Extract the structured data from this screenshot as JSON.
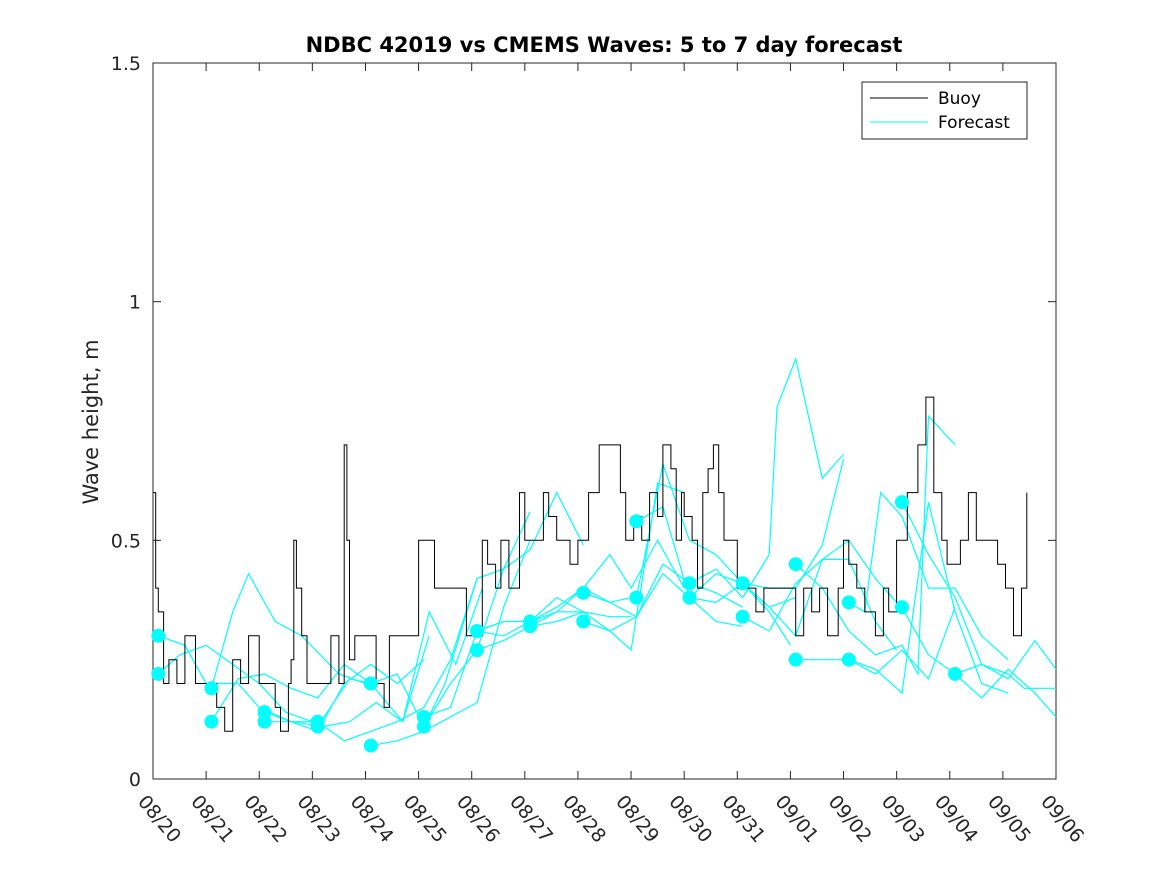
{
  "chart_data": {
    "type": "line",
    "title": "NDBC 42019 vs CMEMS Waves: 5 to 7 day forecast",
    "xlabel": "",
    "ylabel": "Wave height, m",
    "ylim": [
      0,
      1.5
    ],
    "yticks": [
      0,
      0.5,
      1,
      1.5
    ],
    "ytick_labels": [
      "0",
      "0.5",
      "1",
      "1.5"
    ],
    "xlim_days": [
      0,
      17
    ],
    "xtick_labels": [
      "08/20",
      "08/21",
      "08/22",
      "08/23",
      "08/24",
      "08/25",
      "08/26",
      "08/27",
      "08/28",
      "08/29",
      "08/30",
      "08/31",
      "09/01",
      "09/02",
      "09/03",
      "09/04",
      "09/05",
      "09/06"
    ],
    "legend": {
      "position": "top-right",
      "entries": [
        {
          "label": "Buoy",
          "color": "#000000"
        },
        {
          "label": "Forecast",
          "color": "#00ffff"
        }
      ]
    },
    "colors": {
      "buoy": "#000000",
      "forecast": "#00ffff",
      "marker": "#00ffff"
    },
    "buoy": {
      "name": "Buoy",
      "x": [
        0,
        0.05,
        0.1,
        0.2,
        0.3,
        0.45,
        0.6,
        0.8,
        1.0,
        1.1,
        1.2,
        1.35,
        1.5,
        1.65,
        1.8,
        2.0,
        2.15,
        2.3,
        2.4,
        2.55,
        2.6,
        2.65,
        2.7,
        2.8,
        2.9,
        3.0,
        3.1,
        3.2,
        3.35,
        3.5,
        3.6,
        3.65,
        3.7,
        3.8,
        4.0,
        4.2,
        4.35,
        4.45,
        4.6,
        4.8,
        5.0,
        5.3,
        5.5,
        5.7,
        5.9,
        6.0,
        6.1,
        6.2,
        6.3,
        6.45,
        6.55,
        6.7,
        6.9,
        7.0,
        7.15,
        7.25,
        7.35,
        7.45,
        7.6,
        7.7,
        7.85,
        8.0,
        8.2,
        8.4,
        8.6,
        8.8,
        8.9,
        9.05,
        9.2,
        9.35,
        9.5,
        9.6,
        9.75,
        9.85,
        9.95,
        10.0,
        10.15,
        10.25,
        10.35,
        10.45,
        10.55,
        10.65,
        10.75,
        10.9,
        11.0,
        11.2,
        11.35,
        11.5,
        11.7,
        11.9,
        12.0,
        12.1,
        12.25,
        12.4,
        12.55,
        12.7,
        12.9,
        13.0,
        13.1,
        13.25,
        13.4,
        13.6,
        13.75,
        13.85,
        14.0,
        14.2,
        14.4,
        14.55,
        14.7,
        14.85,
        14.95,
        15.0,
        15.2,
        15.35,
        15.5,
        15.6,
        15.8,
        15.9,
        16.05,
        16.2,
        16.35,
        16.45
      ],
      "y": [
        0.6,
        0.4,
        0.35,
        0.2,
        0.25,
        0.2,
        0.3,
        0.2,
        0.2,
        0.2,
        0.15,
        0.1,
        0.25,
        0.2,
        0.3,
        0.2,
        0.2,
        0.15,
        0.1,
        0.2,
        0.25,
        0.5,
        0.4,
        0.3,
        0.2,
        0.2,
        0.2,
        0.2,
        0.3,
        0.2,
        0.7,
        0.5,
        0.25,
        0.3,
        0.3,
        0.2,
        0.15,
        0.3,
        0.3,
        0.3,
        0.5,
        0.4,
        0.4,
        0.4,
        0.3,
        0.3,
        0.3,
        0.5,
        0.45,
        0.4,
        0.5,
        0.4,
        0.6,
        0.5,
        0.5,
        0.5,
        0.6,
        0.55,
        0.5,
        0.5,
        0.45,
        0.5,
        0.6,
        0.7,
        0.7,
        0.6,
        0.5,
        0.55,
        0.5,
        0.6,
        0.55,
        0.7,
        0.65,
        0.5,
        0.6,
        0.55,
        0.5,
        0.4,
        0.6,
        0.65,
        0.7,
        0.6,
        0.5,
        0.5,
        0.4,
        0.4,
        0.35,
        0.4,
        0.4,
        0.4,
        0.4,
        0.3,
        0.4,
        0.35,
        0.4,
        0.3,
        0.4,
        0.5,
        0.45,
        0.4,
        0.35,
        0.3,
        0.4,
        0.35,
        0.5,
        0.6,
        0.7,
        0.8,
        0.6,
        0.5,
        0.45,
        0.45,
        0.5,
        0.6,
        0.5,
        0.5,
        0.5,
        0.45,
        0.4,
        0.3,
        0.4,
        0.6
      ]
    },
    "forecasts": [
      {
        "name": "Forecast",
        "x": [
          0.1,
          0.5,
          1.0,
          1.5,
          2.0,
          2.5,
          3.0
        ],
        "y": [
          0.22,
          0.26,
          0.28,
          0.24,
          0.2,
          0.14,
          0.12
        ]
      },
      {
        "name": "Forecast",
        "x": [
          0.1,
          0.6,
          1.0,
          1.6,
          2.0,
          2.6,
          3.0
        ],
        "y": [
          0.3,
          0.28,
          0.2,
          0.2,
          0.15,
          0.12,
          0.12
        ]
      },
      {
        "name": "Forecast",
        "x": [
          1.1,
          1.5,
          1.8,
          2.3,
          2.8,
          3.5,
          4.0
        ],
        "y": [
          0.19,
          0.35,
          0.43,
          0.33,
          0.3,
          0.22,
          0.2
        ]
      },
      {
        "name": "Forecast",
        "x": [
          1.1,
          1.6,
          2.1,
          2.6,
          3.1,
          3.6,
          4.1
        ],
        "y": [
          0.12,
          0.21,
          0.22,
          0.19,
          0.17,
          0.24,
          0.2
        ]
      },
      {
        "name": "Forecast",
        "x": [
          2.1,
          2.6,
          3.1,
          3.6,
          4.1,
          4.6,
          5.1
        ],
        "y": [
          0.14,
          0.12,
          0.1,
          0.2,
          0.24,
          0.2,
          0.25
        ]
      },
      {
        "name": "Forecast",
        "x": [
          2.1,
          2.6,
          3.2,
          3.7,
          4.2,
          4.7,
          5.2
        ],
        "y": [
          0.12,
          0.12,
          0.11,
          0.12,
          0.16,
          0.12,
          0.3
        ]
      },
      {
        "name": "Forecast",
        "x": [
          3.1,
          3.6,
          4.1,
          4.6,
          5.1,
          5.6,
          6.1
        ],
        "y": [
          0.12,
          0.08,
          0.1,
          0.12,
          0.15,
          0.25,
          0.42
        ]
      },
      {
        "name": "Forecast",
        "x": [
          3.1,
          3.7,
          4.1,
          4.7,
          5.2,
          5.7,
          6.2
        ],
        "y": [
          0.11,
          0.21,
          0.2,
          0.12,
          0.35,
          0.24,
          0.4
        ]
      },
      {
        "name": "Forecast",
        "x": [
          4.1,
          4.6,
          5.1,
          5.6,
          6.1,
          6.6,
          7.1
        ],
        "y": [
          0.07,
          0.08,
          0.1,
          0.13,
          0.16,
          0.36,
          0.5
        ]
      },
      {
        "name": "Forecast",
        "x": [
          4.1,
          4.6,
          5.1,
          5.5,
          6.1,
          6.6,
          7.1
        ],
        "y": [
          0.2,
          0.22,
          0.11,
          0.2,
          0.42,
          0.44,
          0.56
        ]
      },
      {
        "name": "Forecast",
        "x": [
          5.1,
          5.6,
          6.1,
          6.6,
          7.1,
          7.6,
          8.1
        ],
        "y": [
          0.11,
          0.2,
          0.27,
          0.44,
          0.48,
          0.6,
          0.49
        ]
      },
      {
        "name": "Forecast",
        "x": [
          5.1,
          5.6,
          6.1,
          6.6,
          7.1,
          7.6,
          8.1
        ],
        "y": [
          0.13,
          0.15,
          0.31,
          0.3,
          0.33,
          0.38,
          0.35
        ]
      },
      {
        "name": "Forecast",
        "x": [
          6.1,
          6.6,
          7.1,
          7.6,
          8.1,
          8.6,
          9.0
        ],
        "y": [
          0.27,
          0.29,
          0.32,
          0.35,
          0.35,
          0.34,
          0.34
        ]
      },
      {
        "name": "Forecast",
        "x": [
          6.1,
          6.6,
          7.1,
          7.6,
          8.1,
          8.6,
          9.0
        ],
        "y": [
          0.31,
          0.33,
          0.33,
          0.35,
          0.4,
          0.37,
          0.38
        ]
      },
      {
        "name": "Forecast",
        "x": [
          7.1,
          7.6,
          8.1,
          8.6,
          9.0,
          9.5,
          10.0
        ],
        "y": [
          0.32,
          0.33,
          0.35,
          0.31,
          0.27,
          0.62,
          0.6
        ]
      },
      {
        "name": "Forecast",
        "x": [
          7.1,
          7.6,
          8.1,
          8.6,
          9.0,
          9.5,
          10.0
        ],
        "y": [
          0.33,
          0.36,
          0.4,
          0.47,
          0.4,
          0.5,
          0.4
        ]
      },
      {
        "name": "Forecast",
        "x": [
          8.1,
          8.6,
          9.1,
          9.6,
          10.1,
          10.6,
          11.1
        ],
        "y": [
          0.39,
          0.37,
          0.34,
          0.43,
          0.38,
          0.33,
          0.32
        ]
      },
      {
        "name": "Forecast",
        "x": [
          8.1,
          8.6,
          9.1,
          9.6,
          10.1,
          10.6,
          11.1
        ],
        "y": [
          0.33,
          0.31,
          0.34,
          0.45,
          0.41,
          0.39,
          0.36
        ]
      },
      {
        "name": "Forecast",
        "x": [
          9.1,
          9.6,
          10.1,
          10.6,
          11.1,
          11.6,
          12.1
        ],
        "y": [
          0.54,
          0.57,
          0.38,
          0.43,
          0.41,
          0.36,
          0.38
        ]
      },
      {
        "name": "Forecast",
        "x": [
          9.1,
          9.6,
          10.1,
          10.6,
          11.1,
          11.6,
          12.0
        ],
        "y": [
          0.38,
          0.66,
          0.5,
          0.47,
          0.41,
          0.35,
          0.28
        ]
      },
      {
        "name": "Forecast",
        "x": [
          10.1,
          10.6,
          11.1,
          11.6,
          11.75,
          12.1,
          12.6,
          13.0
        ],
        "y": [
          0.41,
          0.44,
          0.38,
          0.47,
          0.78,
          0.88,
          0.63,
          0.68
        ]
      },
      {
        "name": "Forecast",
        "x": [
          10.1,
          10.6,
          11.1,
          11.6,
          12.1,
          12.6,
          13.0
        ],
        "y": [
          0.38,
          0.37,
          0.41,
          0.4,
          0.4,
          0.49,
          0.67
        ]
      },
      {
        "name": "Forecast",
        "x": [
          11.1,
          11.6,
          12.1,
          12.6,
          13.1,
          13.6,
          14.0
        ],
        "y": [
          0.41,
          0.36,
          0.3,
          0.46,
          0.5,
          0.42,
          0.37
        ]
      },
      {
        "name": "Forecast",
        "x": [
          11.1,
          11.6,
          12.1,
          12.6,
          13.1,
          13.6,
          14.0
        ],
        "y": [
          0.34,
          0.31,
          0.41,
          0.46,
          0.46,
          0.33,
          0.27
        ]
      },
      {
        "name": "Forecast",
        "x": [
          12.1,
          12.6,
          13.1,
          13.6,
          14.1,
          14.4,
          14.6,
          15.1
        ],
        "y": [
          0.45,
          0.4,
          0.31,
          0.26,
          0.28,
          0.22,
          0.76,
          0.7
        ]
      },
      {
        "name": "Forecast",
        "x": [
          12.1,
          12.6,
          13.1,
          13.6,
          14.1,
          14.6,
          15.1
        ],
        "y": [
          0.25,
          0.25,
          0.25,
          0.22,
          0.27,
          0.21,
          0.36
        ]
      },
      {
        "name": "Forecast",
        "x": [
          13.1,
          13.4,
          13.7,
          14.1,
          14.6,
          15.1,
          15.6,
          16.1
        ],
        "y": [
          0.37,
          0.35,
          0.6,
          0.55,
          0.4,
          0.4,
          0.3,
          0.25
        ]
      },
      {
        "name": "Forecast",
        "x": [
          13.1,
          13.6,
          14.1,
          14.6,
          15.1,
          15.6,
          16.1
        ],
        "y": [
          0.25,
          0.23,
          0.18,
          0.58,
          0.35,
          0.2,
          0.18
        ]
      },
      {
        "name": "Forecast",
        "x": [
          14.1,
          14.6,
          15.1,
          15.6,
          16.1,
          16.6,
          17.0
        ],
        "y": [
          0.58,
          0.47,
          0.38,
          0.24,
          0.21,
          0.29,
          0.23
        ]
      },
      {
        "name": "Forecast",
        "x": [
          14.1,
          14.6,
          15.1,
          15.6,
          16.1,
          16.6,
          17.0
        ],
        "y": [
          0.36,
          0.26,
          0.22,
          0.17,
          0.23,
          0.18,
          0.13
        ]
      },
      {
        "name": "Forecast",
        "x": [
          15.1,
          15.6,
          16.1,
          16.4,
          16.8,
          17.0
        ],
        "y": [
          0.22,
          0.24,
          0.22,
          0.19,
          0.19,
          0.19
        ]
      }
    ]
  }
}
